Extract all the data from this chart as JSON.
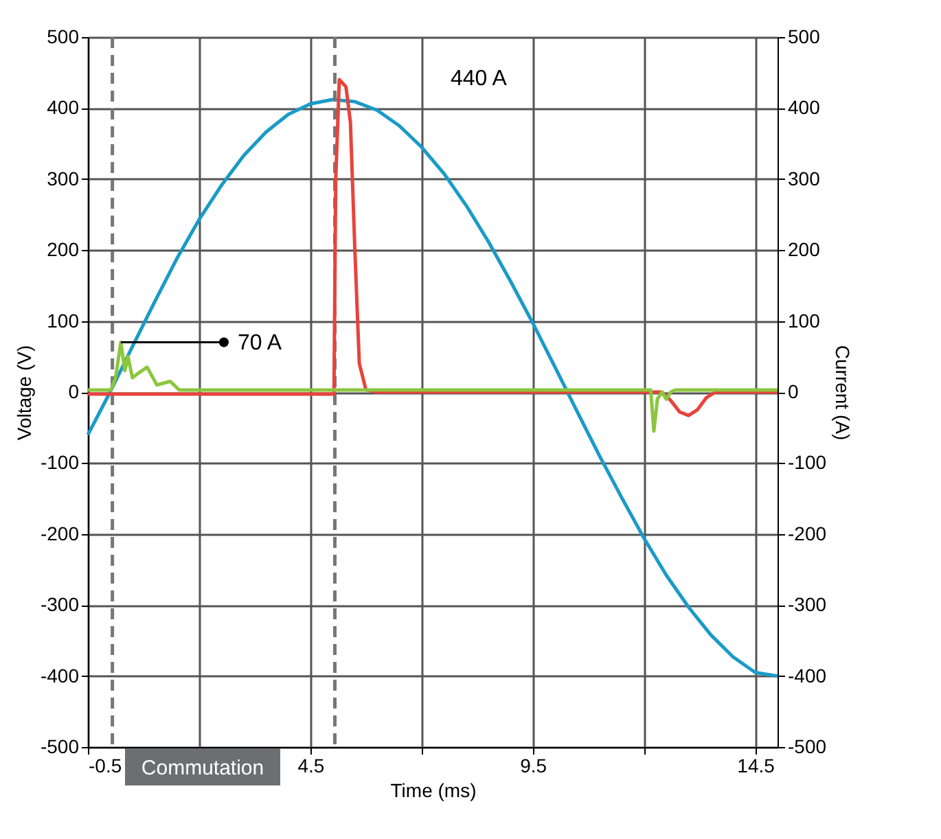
{
  "chart_data": {
    "type": "line",
    "xlabel": "Time (ms)",
    "ylabel": "Voltage (V)",
    "y2label": "Current (A)",
    "xlim": [
      -0.5,
      15.0
    ],
    "xticks": [
      -0.5,
      {
        "value": 2.0,
        "label": null
      },
      4.5,
      {
        "value": 7.0,
        "label": null
      },
      9.5,
      {
        "value": 12.0,
        "label": null
      },
      14.5
    ],
    "ylim": [
      -500,
      500
    ],
    "yticks": [
      -500,
      -400,
      -300,
      -200,
      -100,
      0,
      100,
      200,
      300,
      400,
      500
    ],
    "y2lim": [
      -500,
      500
    ],
    "y2ticks": [
      -500,
      -400,
      -300,
      -200,
      -100,
      0,
      100,
      200,
      300,
      400,
      500
    ],
    "grid": true,
    "marker": "none",
    "line_style": "solid",
    "series": [
      {
        "color": "#1a9bc7",
        "x": [
          -0.5,
          0,
          0.5,
          1,
          1.5,
          2,
          2.5,
          3,
          3.5,
          4,
          4.5,
          5,
          5.5,
          6,
          6.5,
          7,
          7.5,
          8,
          8.5,
          9,
          9.5,
          10,
          10.5,
          11,
          11.5,
          12,
          12.5,
          13,
          13.5,
          14,
          14.5,
          15
        ],
        "values": [
          -60,
          0,
          64,
          127,
          188,
          243,
          291,
          333,
          366,
          391,
          406,
          412,
          409,
          397,
          375,
          345,
          308,
          263,
          212,
          156,
          97,
          35,
          -28,
          -90,
          -149,
          -206,
          -258,
          -303,
          -342,
          -373,
          -395,
          -400
        ]
      },
      {
        "color": "#e8433c",
        "axis": "y2",
        "x": [
          -0.5,
          5.03,
          5.07,
          5.15,
          5.3,
          5.4,
          5.5,
          5.6,
          5.75,
          6.0,
          12.4,
          12.6,
          12.8,
          13.0,
          13.2,
          13.4,
          13.6,
          15
        ],
        "values": [
          -3,
          -3,
          300,
          440,
          430,
          380,
          200,
          40,
          3,
          0,
          0,
          -12,
          -28,
          -33,
          -25,
          -8,
          0,
          0
        ]
      },
      {
        "color": "#8cc63f",
        "axis": "y2",
        "x": [
          -0.5,
          0.02,
          0.12,
          0.24,
          0.33,
          0.4,
          0.5,
          0.6,
          0.83,
          1.05,
          1.35,
          1.55,
          12.15,
          12.22,
          12.3,
          12.4,
          12.5,
          12.6,
          12.7,
          15
        ],
        "values": [
          3,
          3,
          20,
          70,
          30,
          50,
          20,
          25,
          35,
          10,
          15,
          3,
          3,
          -55,
          -10,
          0,
          -10,
          0,
          3,
          3
        ]
      }
    ],
    "ref_lines": [
      {
        "axis": "x",
        "value": 0.05,
        "color": "#777777",
        "line_style": "dashed"
      },
      {
        "axis": "x",
        "value": 5.05,
        "color": "#777777",
        "line_style": "dashed"
      }
    ],
    "annotations": [
      "440 A",
      {
        "text": "70 A",
        "x": 0.24,
        "y": 70
      },
      "Commutation"
    ]
  }
}
